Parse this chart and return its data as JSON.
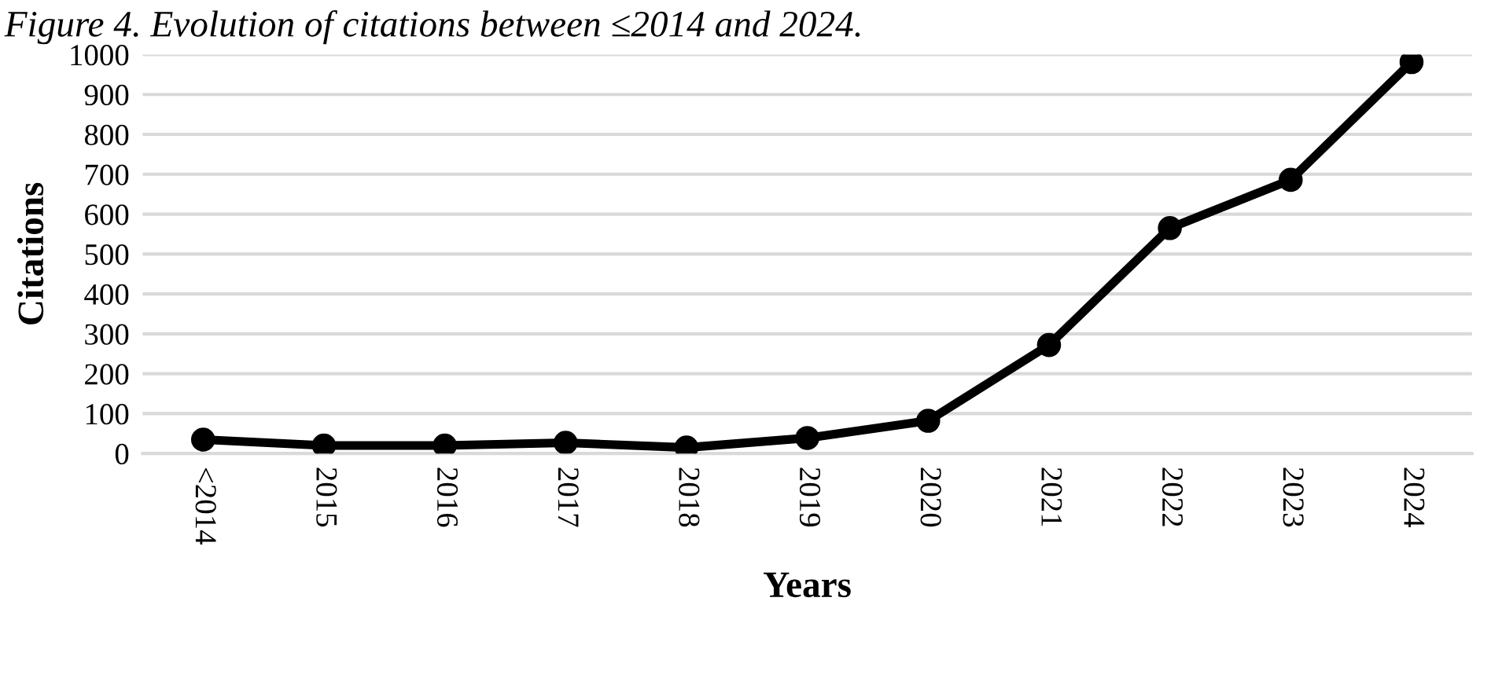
{
  "chart_data": {
    "type": "line",
    "title": "Figure 4. Evolution of citations between ≤2014 and 2024.",
    "xlabel": "Years",
    "ylabel": "Citations",
    "categories": [
      "<2014",
      "2015",
      "2016",
      "2017",
      "2018",
      "2019",
      "2020",
      "2021",
      "2022",
      "2023",
      "2024"
    ],
    "series": [
      {
        "color": "#000000",
        "values": [
          35,
          20,
          20,
          27,
          15,
          39,
          82,
          272,
          565,
          686,
          981
        ]
      }
    ],
    "ylim": [
      0,
      1000
    ],
    "yticks": [
      0,
      100,
      200,
      300,
      400,
      500,
      600,
      700,
      800,
      900,
      1000
    ],
    "grid": "y",
    "legend": false,
    "marker": "circle",
    "line_style": "solid"
  }
}
